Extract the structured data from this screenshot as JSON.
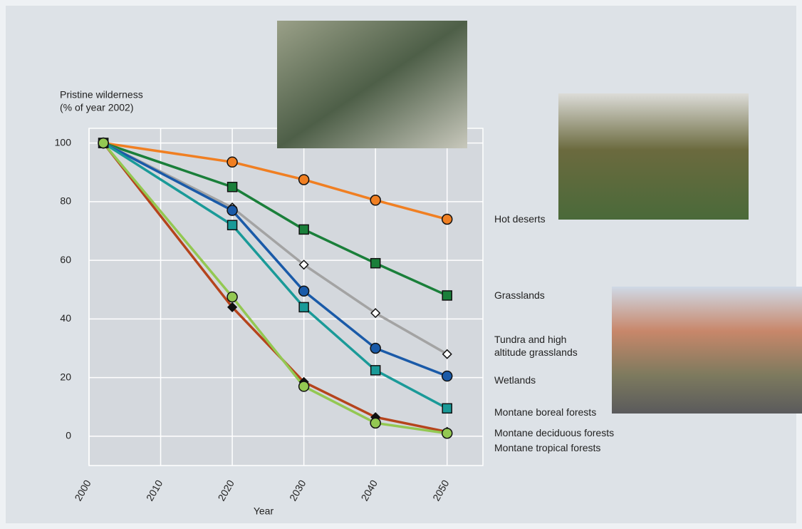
{
  "chart_data": {
    "type": "line",
    "y_label": [
      "Pristine wilderness",
      "(% of year 2002)"
    ],
    "x_label": "Year",
    "x": [
      2002,
      2020,
      2030,
      2040,
      2050
    ],
    "xlim": [
      2000,
      2055
    ],
    "xticks": [
      2000,
      2010,
      2020,
      2030,
      2040,
      2050
    ],
    "ylim": [
      -10,
      105
    ],
    "yticks": [
      0,
      20,
      40,
      60,
      80,
      100
    ],
    "grid": true,
    "series": [
      {
        "name": "Hot deserts",
        "color": "#f07f22",
        "marker": "circle",
        "values": [
          100,
          93.5,
          87.5,
          80.5,
          74
        ]
      },
      {
        "name": "Grasslands",
        "color": "#1a7f3a",
        "marker": "square",
        "values": [
          100,
          85,
          70.5,
          59,
          48
        ]
      },
      {
        "name": "Tundra and high altitude grasslands",
        "color": "#a3a3a3",
        "marker": "diamond",
        "values": [
          100,
          78,
          58.5,
          42,
          28
        ]
      },
      {
        "name": "Wetlands",
        "color": "#1a5aa8",
        "marker": "circle",
        "values": [
          100,
          77,
          49.5,
          30,
          20.5
        ]
      },
      {
        "name": "Montane boreal forests",
        "color": "#1a9a98",
        "marker": "square",
        "values": [
          100,
          72,
          44,
          22.5,
          9.5
        ]
      },
      {
        "name": "Montane deciduous forests",
        "color": "#b5441c",
        "marker": "diamond",
        "values": [
          100,
          44,
          18.5,
          6.5,
          1.5
        ]
      },
      {
        "name": "Montane tropical forests",
        "color": "#93c852",
        "marker": "circle",
        "values": [
          100,
          47.5,
          17,
          4.5,
          1
        ]
      }
    ]
  }
}
